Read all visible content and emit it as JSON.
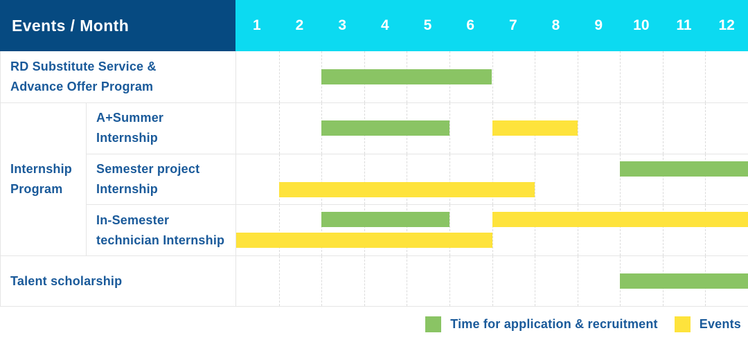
{
  "header": {
    "title": "Events / Month",
    "months": [
      "1",
      "2",
      "3",
      "4",
      "5",
      "6",
      "7",
      "8",
      "9",
      "10",
      "11",
      "12"
    ]
  },
  "colors": {
    "navy": "#064A81",
    "cyan": "#0CDAF1",
    "green": "#8AC464",
    "yellow": "#FEE33C",
    "text_blue": "#1A5A9A",
    "grid_line": "#E5E5E5",
    "grid_dash": "#DBDBDB"
  },
  "chart_data": {
    "type": "gantt",
    "unit": "month",
    "axis_months": [
      1,
      2,
      3,
      4,
      5,
      6,
      7,
      8,
      9,
      10,
      11,
      12
    ],
    "groups": [
      {
        "label": "Internship\nProgram",
        "row_indexes": [
          1,
          2,
          3
        ]
      }
    ],
    "rows": [
      {
        "label": "RD Substitute Service &\nAdvance Offer Program",
        "group": null,
        "lines": [
          [
            {
              "color": "green",
              "start": 3,
              "end": 6
            }
          ]
        ]
      },
      {
        "label": "A+Summer\nInternship",
        "group": "Internship Program",
        "lines": [
          [
            {
              "color": "green",
              "start": 3,
              "end": 5
            },
            {
              "color": "yellow",
              "start": 7,
              "end": 8
            }
          ]
        ]
      },
      {
        "label": "Semester project\nInternship",
        "group": "Internship Program",
        "lines": [
          [
            {
              "color": "green",
              "start": 10,
              "end": 12
            }
          ],
          [
            {
              "color": "yellow",
              "start": 2,
              "end": 7
            }
          ]
        ]
      },
      {
        "label": "In-Semester\ntechnician Internship",
        "group": "Internship Program",
        "lines": [
          [
            {
              "color": "green",
              "start": 3,
              "end": 5
            },
            {
              "color": "yellow",
              "start": 7,
              "end": 12
            }
          ],
          [
            {
              "color": "yellow",
              "start": 1,
              "end": 6
            }
          ]
        ]
      },
      {
        "label": "Talent scholarship",
        "group": null,
        "lines": [
          [
            {
              "color": "green",
              "start": 10,
              "end": 12
            }
          ]
        ]
      }
    ]
  },
  "legend": {
    "items": [
      {
        "color": "green",
        "label": "Time for application & recruitment"
      },
      {
        "color": "yellow",
        "label": "Events"
      }
    ]
  }
}
